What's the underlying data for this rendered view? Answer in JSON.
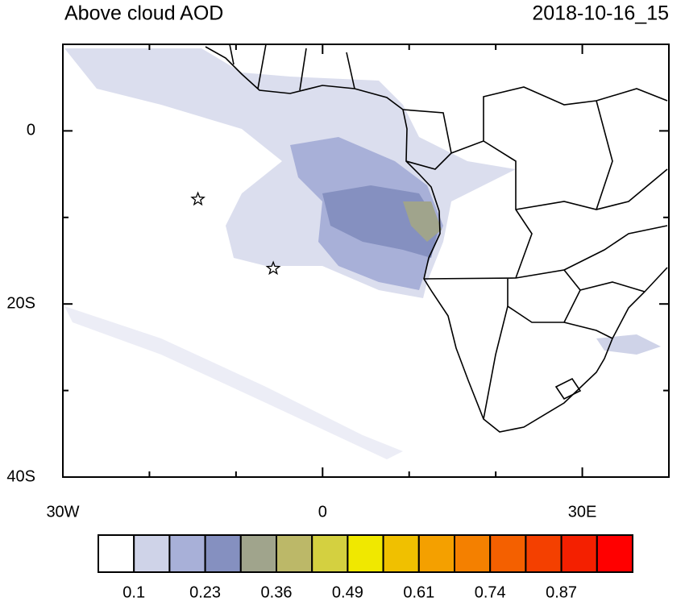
{
  "title": "Above cloud AOD",
  "timestamp": "2018-10-16_15",
  "map": {
    "lon_range": [
      -30,
      40
    ],
    "lat_range": [
      -40,
      10
    ],
    "lon_ticks": [
      {
        "value": -30,
        "label": "30W"
      },
      0,
      {
        "value": 30,
        "label": "30E"
      }
    ],
    "lat_ticks": [
      0,
      {
        "value": -20,
        "label": "20S"
      },
      {
        "value": -40,
        "label": "40S"
      }
    ],
    "lon_minor_ticks": [
      -20,
      -10,
      10,
      20,
      40
    ],
    "lat_minor_ticks": [
      10,
      -10,
      -30
    ],
    "markers": [
      {
        "lon": -14.4,
        "lat": -7.9
      },
      {
        "lon": -5.7,
        "lat": -15.9
      }
    ]
  },
  "colorbar": {
    "colors": [
      "#ffffff",
      "#cfd3e8",
      "#a8b0d8",
      "#8590c0",
      "#a0a48c",
      "#bcb868",
      "#d4d040",
      "#f0e800",
      "#f0c000",
      "#f4a000",
      "#f48000",
      "#f46000",
      "#f44000",
      "#f42000",
      "#ff0000"
    ],
    "labels": [
      0.1,
      0.23,
      0.36,
      0.49,
      0.61,
      0.74,
      0.87
    ]
  }
}
